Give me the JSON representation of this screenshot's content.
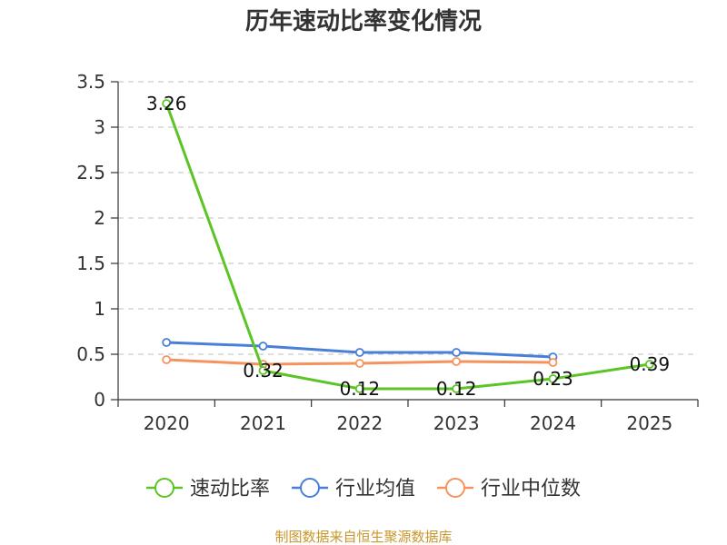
{
  "chart_data": {
    "type": "line",
    "title": "历年速动比率变化情况",
    "categories": [
      "2020",
      "2021",
      "2022",
      "2023",
      "2024",
      "2025"
    ],
    "ylim": [
      0,
      3.5
    ],
    "yticks": [
      "0",
      "0.5",
      "1",
      "1.5",
      "2",
      "2.5",
      "3",
      "3.5"
    ],
    "ytick_values": [
      0,
      0.5,
      1,
      1.5,
      2,
      2.5,
      3,
      3.5
    ],
    "grid": true,
    "legend_position": "bottom",
    "series": [
      {
        "name": "速动比率",
        "color": "#5cc424",
        "values": [
          3.26,
          0.32,
          0.12,
          0.12,
          0.23,
          0.39
        ],
        "labels": [
          "3.26",
          "0.32",
          "0.12",
          "0.12",
          "0.23",
          "0.39"
        ]
      },
      {
        "name": "行业均值",
        "color": "#4a7fd8",
        "values": [
          0.63,
          0.59,
          0.52,
          0.52,
          0.47,
          null
        ]
      },
      {
        "name": "行业中位数",
        "color": "#f5935e",
        "values": [
          0.44,
          0.39,
          0.4,
          0.42,
          0.41,
          null
        ]
      }
    ],
    "source": "制图数据来自恒生聚源数据库"
  }
}
